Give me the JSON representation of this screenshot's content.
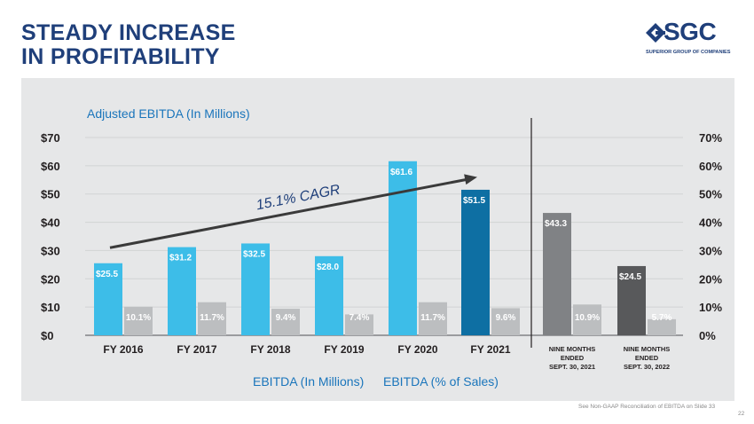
{
  "header": {
    "title_line1": "STEADY INCREASE",
    "title_line2": "IN PROFITABILITY",
    "logo_text": "SGC",
    "logo_subtitle": "SUPERIOR GROUP OF COMPANIES"
  },
  "footer": {
    "note": "See Non-GAAP Reconciliation of EBITDA on Slide 33",
    "page_number": "22"
  },
  "colors": {
    "bar_blue": "#3dbde8",
    "bar_darkblue": "#0e6fa3",
    "bar_gray_light": "#bcbec0",
    "bar_gray_mid": "#808285",
    "bar_gray_dark": "#58595b",
    "title_blue": "#1f3f7a",
    "subtitle_blue": "#1a75bb"
  },
  "chart_data": {
    "type": "bar",
    "title": "Adjusted EBITDA (In Millions)",
    "categories": [
      "FY 2016",
      "FY 2017",
      "FY 2018",
      "FY 2019",
      "FY 2020",
      "FY 2021",
      "NINE MONTHS ENDED SEPT. 30, 2021",
      "NINE MONTHS ENDED SEPT. 30, 2022"
    ],
    "category_lines": [
      [
        "FY 2016"
      ],
      [
        "FY 2017"
      ],
      [
        "FY 2018"
      ],
      [
        "FY 2019"
      ],
      [
        "FY 2020"
      ],
      [
        "FY 2021"
      ],
      [
        "NINE MONTHS",
        "ENDED",
        "SEPT. 30, 2021"
      ],
      [
        "NINE MONTHS",
        "ENDED",
        "SEPT. 30, 2022"
      ]
    ],
    "series": [
      {
        "name": "EBITDA (In Millions)",
        "axis": "left",
        "values": [
          25.5,
          31.2,
          32.5,
          28.0,
          61.6,
          51.5,
          43.3,
          24.5
        ],
        "labels": [
          "$25.5",
          "$31.2",
          "$32.5",
          "$28.0",
          "$61.6",
          "$51.5",
          "$43.3",
          "$24.5"
        ],
        "colors": [
          "#3dbde8",
          "#3dbde8",
          "#3dbde8",
          "#3dbde8",
          "#3dbde8",
          "#0e6fa3",
          "#808285",
          "#58595b"
        ]
      },
      {
        "name": "EBITDA (% of Sales)",
        "axis": "right",
        "values": [
          10.1,
          11.7,
          9.4,
          7.4,
          11.7,
          9.6,
          10.9,
          5.7
        ],
        "labels": [
          "10.1%",
          "11.7%",
          "9.4%",
          "7.4%",
          "11.7%",
          "9.6%",
          "10.9%",
          "5.7%"
        ],
        "colors": [
          "#bcbec0",
          "#bcbec0",
          "#bcbec0",
          "#bcbec0",
          "#bcbec0",
          "#bcbec0",
          "#bcbec0",
          "#bcbec0"
        ]
      }
    ],
    "y_left": {
      "ylim": [
        0,
        70
      ],
      "ticks": [
        "$0",
        "$10",
        "$20",
        "$30",
        "$40",
        "$50",
        "$60",
        "$70"
      ]
    },
    "y_right": {
      "ylim": [
        0,
        70
      ],
      "ticks": [
        "0%",
        "10%",
        "20%",
        "30%",
        "40%",
        "50%",
        "60%",
        "70%"
      ]
    },
    "annotation": {
      "text": "15.1% CAGR",
      "from_category": 0,
      "to_category": 5,
      "y_start": 31,
      "y_end": 56
    },
    "legend": [
      "EBITDA (In Millions)",
      "EBITDA (% of Sales)"
    ],
    "grid": true
  }
}
